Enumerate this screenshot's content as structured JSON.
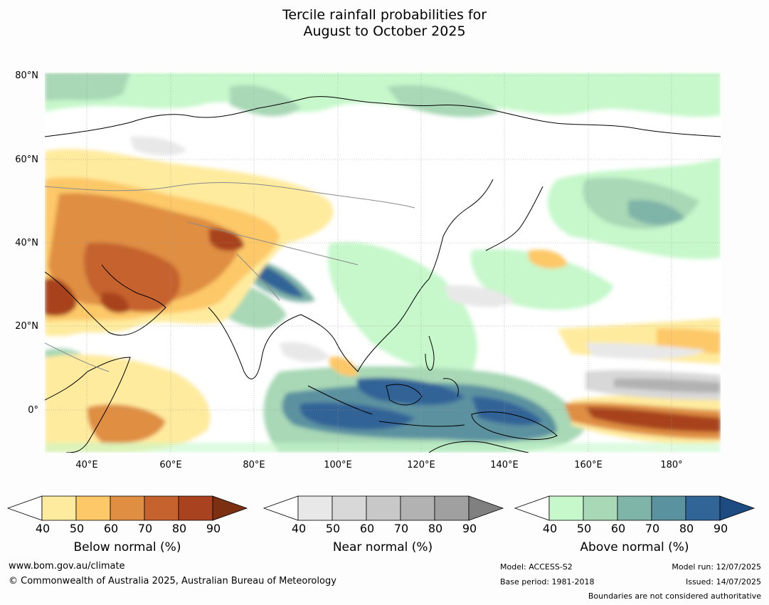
{
  "title": {
    "line1": "Tercile rainfall probabilities for",
    "line2": "August to October 2025"
  },
  "map": {
    "lat_labels": [
      "80°N",
      "60°N",
      "40°N",
      "20°N",
      "0°"
    ],
    "lon_labels": [
      "40°E",
      "60°E",
      "80°E",
      "100°E",
      "120°E",
      "140°E",
      "160°E",
      "180°"
    ],
    "lat_range": [
      -10,
      80
    ],
    "lon_range": [
      30,
      192
    ],
    "background_color": "#ffffff"
  },
  "colorbars": [
    {
      "title": "Below normal (%)",
      "ticks": [
        "40",
        "50",
        "60",
        "70",
        "80",
        "90"
      ],
      "colors": [
        "#ffeb9e",
        "#fdc867",
        "#df8e42",
        "#c5622e",
        "#a8421f",
        "#7d2f12"
      ]
    },
    {
      "title": "Near normal (%)",
      "ticks": [
        "40",
        "50",
        "60",
        "70",
        "80",
        "90"
      ],
      "colors": [
        "#e8e8e8",
        "#d8d8d8",
        "#c8c8c8",
        "#b2b2b2",
        "#a0a0a0",
        "#808080"
      ]
    },
    {
      "title": "Above normal (%)",
      "ticks": [
        "40",
        "50",
        "60",
        "70",
        "80",
        "90"
      ],
      "colors": [
        "#c6f8cb",
        "#a8d8b6",
        "#7fb4a8",
        "#5b92a0",
        "#316497",
        "#1d4c82"
      ]
    }
  ],
  "footer": {
    "website": "www.bom.gov.au/climate",
    "copyright": "© Commonwealth of Australia 2025, Australian Bureau of Meteorology",
    "model": "Model: ACCESS-S2",
    "base_period": "Base period: 1981-2018",
    "model_run": "Model run: 12/07/2025",
    "issued": "Issued: 14/07/2025",
    "disclaimer": "Boundaries are not considered authoritative"
  }
}
